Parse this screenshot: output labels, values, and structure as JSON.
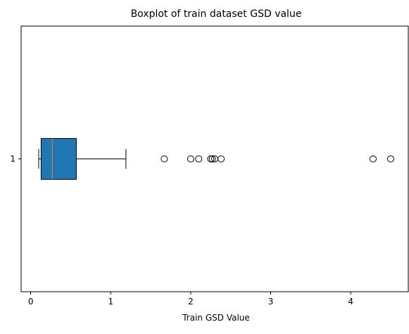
{
  "chart_data": {
    "type": "boxplot",
    "orientation": "horizontal",
    "title": "Boxplot of train dataset GSD value",
    "xlabel": "Train GSD Value",
    "ylabel": "",
    "xlim": [
      -0.12,
      4.72
    ],
    "x_ticks": [
      0,
      1,
      2,
      3,
      4
    ],
    "y_ticks": [
      "1"
    ],
    "grid": false,
    "colors": {
      "box_fill": "#1f77b4",
      "median_line": "#ff7f0e",
      "lines": "#000000"
    },
    "boxes": [
      {
        "label": "1",
        "whisker_low": 0.1,
        "q1": 0.13,
        "median": 0.27,
        "q3": 0.57,
        "whisker_high": 1.19,
        "outliers": [
          1.67,
          2.0,
          2.1,
          2.25,
          2.27,
          2.3,
          2.38,
          4.28,
          4.5
        ]
      }
    ]
  }
}
